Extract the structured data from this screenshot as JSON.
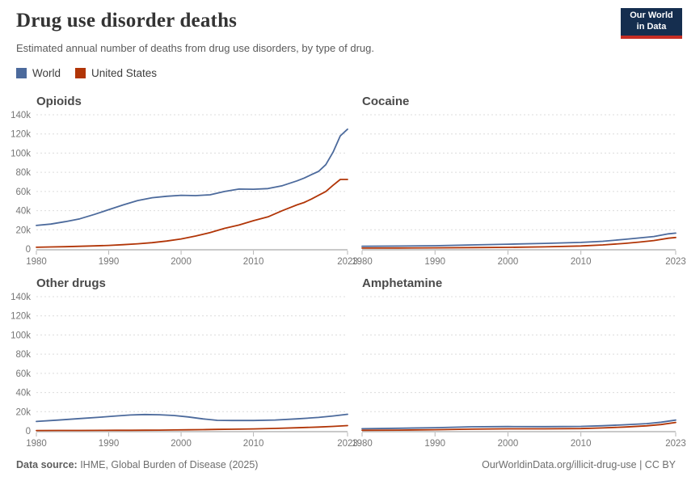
{
  "header": {
    "title": "Drug use disorder deaths",
    "subtitle": "Estimated annual number of deaths from drug use disorders, by type of drug.",
    "logo_line1": "Our World",
    "logo_line2": "in Data"
  },
  "legend": {
    "items": [
      {
        "label": "World",
        "color": "#4C6A9C"
      },
      {
        "label": "United States",
        "color": "#B13507"
      }
    ]
  },
  "footer": {
    "source_label": "Data source:",
    "source_value": " IHME, Global Burden of Disease (2025)",
    "credit": "OurWorldinData.org/illicit-drug-use | CC BY"
  },
  "style": {
    "grid_color": "#dcdcdc",
    "axis_color": "#c9c9c9",
    "tick_color": "#b5b5b5",
    "tick_text_color": "#767676",
    "facet_title_color": "#4a4a4a",
    "line_width": 1.8
  },
  "chart_data": [
    {
      "type": "line",
      "title": "Opioids",
      "x": [
        1980,
        1982,
        1984,
        1986,
        1988,
        1990,
        1992,
        1994,
        1996,
        1998,
        2000,
        2002,
        2004,
        2006,
        2008,
        2010,
        2012,
        2014,
        2016,
        2017,
        2018,
        2019,
        2020,
        2021,
        2022,
        2023
      ],
      "series": [
        {
          "name": "World",
          "color": "#4C6A9C",
          "values": [
            24500,
            26000,
            28500,
            31500,
            36000,
            41000,
            46000,
            50500,
            53500,
            55000,
            56000,
            55700,
            56500,
            60000,
            62500,
            62300,
            63000,
            66000,
            71000,
            74000,
            77500,
            81000,
            88000,
            101000,
            118000,
            125000
          ]
        },
        {
          "name": "United States",
          "color": "#B13507",
          "values": [
            1800,
            2100,
            2400,
            2800,
            3200,
            3700,
            4500,
            5400,
            6600,
            8300,
            10500,
            13500,
            17000,
            21500,
            25000,
            29500,
            33500,
            40000,
            46000,
            48500,
            52000,
            56000,
            60000,
            66500,
            72500,
            72500
          ]
        }
      ],
      "ylim": [
        0,
        140000
      ],
      "yticks": [
        0,
        20000,
        40000,
        60000,
        80000,
        100000,
        120000,
        140000
      ],
      "ytick_labels": [
        "0",
        "20k",
        "40k",
        "60k",
        "80k",
        "100k",
        "120k",
        "140k"
      ],
      "xticks": [
        1980,
        1990,
        2000,
        2010,
        2023
      ],
      "show_y_labels": true,
      "grid": "dashed-horizontal",
      "legend_position": "top-of-page"
    },
    {
      "type": "line",
      "title": "Cocaine",
      "x": [
        1980,
        1985,
        1990,
        1995,
        2000,
        2005,
        2010,
        2013,
        2016,
        2018,
        2020,
        2022,
        2023
      ],
      "series": [
        {
          "name": "World",
          "color": "#4C6A9C",
          "values": [
            2800,
            3000,
            3400,
            4200,
            5000,
            5800,
            6800,
            8000,
            10000,
            11500,
            13000,
            15800,
            16500
          ]
        },
        {
          "name": "United States",
          "color": "#B13507",
          "values": [
            900,
            1000,
            1200,
            1400,
            1700,
            2200,
            3100,
            4200,
            5800,
            7200,
            8800,
            11200,
            12000
          ]
        }
      ],
      "ylim": [
        0,
        140000
      ],
      "yticks": [
        0,
        20000,
        40000,
        60000,
        80000,
        100000,
        120000,
        140000
      ],
      "ytick_labels": [
        "0",
        "20k",
        "40k",
        "60k",
        "80k",
        "100k",
        "120k",
        "140k"
      ],
      "xticks": [
        1980,
        1990,
        2000,
        2010,
        2023
      ],
      "show_y_labels": false,
      "grid": "dashed-horizontal",
      "legend_position": "top-of-page"
    },
    {
      "type": "line",
      "title": "Other drugs",
      "x": [
        1980,
        1983,
        1986,
        1989,
        1991,
        1993,
        1995,
        1997,
        1999,
        2001,
        2003,
        2005,
        2007,
        2010,
        2013,
        2016,
        2019,
        2021,
        2023
      ],
      "series": [
        {
          "name": "World",
          "color": "#4C6A9C",
          "values": [
            9800,
            11200,
            12800,
            14300,
            15500,
            16500,
            17000,
            16800,
            16000,
            14500,
            12500,
            11000,
            10800,
            10800,
            11300,
            12500,
            14000,
            15500,
            17300
          ]
        },
        {
          "name": "United States",
          "color": "#B13507",
          "values": [
            300,
            400,
            450,
            500,
            550,
            600,
            700,
            800,
            900,
            1100,
            1300,
            1500,
            1700,
            2000,
            2500,
            3200,
            4000,
            4600,
            5500
          ]
        }
      ],
      "ylim": [
        0,
        140000
      ],
      "yticks": [
        0,
        20000,
        40000,
        60000,
        80000,
        100000,
        120000,
        140000
      ],
      "ytick_labels": [
        "0",
        "20k",
        "40k",
        "60k",
        "80k",
        "100k",
        "120k",
        "140k"
      ],
      "xticks": [
        1980,
        1990,
        2000,
        2010,
        2023
      ],
      "show_y_labels": true,
      "grid": "dashed-horizontal",
      "legend_position": "top-of-page"
    },
    {
      "type": "line",
      "title": "Amphetamine",
      "x": [
        1980,
        1985,
        1990,
        1995,
        2000,
        2005,
        2010,
        2013,
        2016,
        2019,
        2021,
        2023
      ],
      "series": [
        {
          "name": "World",
          "color": "#4C6A9C",
          "values": [
            2200,
            2700,
            3300,
            4200,
            4500,
            4400,
            4600,
            5300,
            6300,
            7500,
            9000,
            11200
          ]
        },
        {
          "name": "United States",
          "color": "#B13507",
          "values": [
            600,
            800,
            1200,
            1800,
            2100,
            2100,
            2400,
            3000,
            4000,
            5200,
            6600,
            8800
          ]
        }
      ],
      "ylim": [
        0,
        140000
      ],
      "yticks": [
        0,
        20000,
        40000,
        60000,
        80000,
        100000,
        120000,
        140000
      ],
      "ytick_labels": [
        "0",
        "20k",
        "40k",
        "60k",
        "80k",
        "100k",
        "120k",
        "140k"
      ],
      "xticks": [
        1980,
        1990,
        2000,
        2010,
        2023
      ],
      "show_y_labels": false,
      "grid": "dashed-horizontal",
      "legend_position": "top-of-page"
    }
  ]
}
